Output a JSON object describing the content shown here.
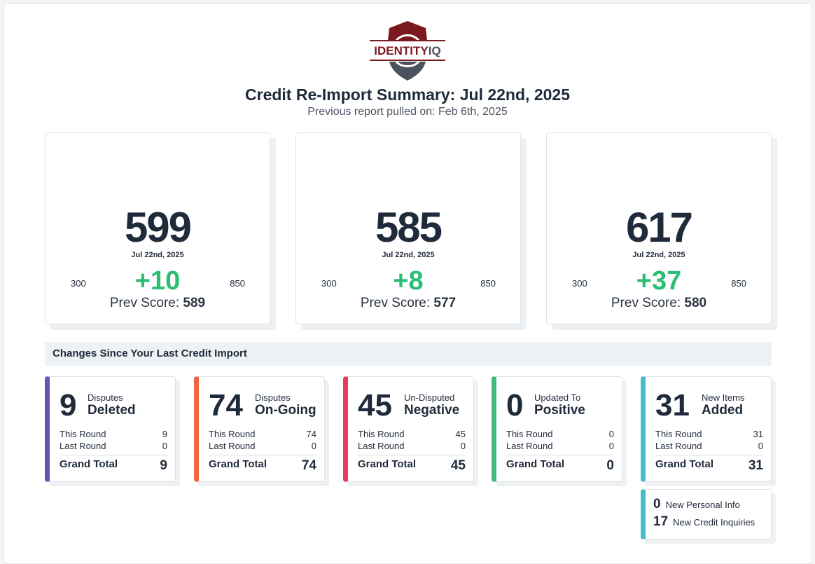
{
  "logo": {
    "text": "IDENTITYIQ"
  },
  "header": {
    "title": "Credit Re-Import Summary: Jul 22nd, 2025",
    "subtitle": "Previous report pulled on: Feb 6th, 2025"
  },
  "scores": [
    {
      "score": "599",
      "date": "Jul 22nd, 2025",
      "min": "300",
      "max": "850",
      "delta": "+10",
      "prev_label": "Prev Score:",
      "prev": "589"
    },
    {
      "score": "585",
      "date": "Jul 22nd, 2025",
      "min": "300",
      "max": "850",
      "delta": "+8",
      "prev_label": "Prev Score:",
      "prev": "577"
    },
    {
      "score": "617",
      "date": "Jul 22nd, 2025",
      "min": "300",
      "max": "850",
      "delta": "+37",
      "prev_label": "Prev Score:",
      "prev": "580"
    }
  ],
  "changes": {
    "title": "Changes Since Your Last Credit Import",
    "cards": [
      {
        "big": "9",
        "top": "Disputes",
        "main": "Deleted",
        "this_label": "This Round",
        "this": "9",
        "last_label": "Last Round",
        "last": "0",
        "total_label": "Grand Total",
        "total": "9",
        "color": "#6b52b3"
      },
      {
        "big": "74",
        "top": "Disputes",
        "main": "On-Going",
        "this_label": "This Round",
        "this": "74",
        "last_label": "Last Round",
        "last": "0",
        "total_label": "Grand Total",
        "total": "74",
        "color": "#ef6543"
      },
      {
        "big": "45",
        "top": "Un-Disputed",
        "main": "Negative",
        "this_label": "This Round",
        "this": "45",
        "last_label": "Last Round",
        "last": "0",
        "total_label": "Grand Total",
        "total": "45",
        "color": "#ec3a5c"
      },
      {
        "big": "0",
        "top": "Updated To",
        "main": "Positive",
        "this_label": "This Round",
        "this": "0",
        "last_label": "Last Round",
        "last": "0",
        "total_label": "Grand Total",
        "total": "0",
        "color": "#3fba7f"
      },
      {
        "big": "31",
        "top": "New Items",
        "main": "Added",
        "this_label": "This Round",
        "this": "31",
        "last_label": "Last Round",
        "last": "0",
        "total_label": "Grand Total",
        "total": "31",
        "color": "#47bccb"
      }
    ],
    "extra": [
      {
        "value": "0",
        "label": "New Personal Info"
      },
      {
        "value": "17",
        "label": "New Credit Inquiries"
      }
    ]
  }
}
